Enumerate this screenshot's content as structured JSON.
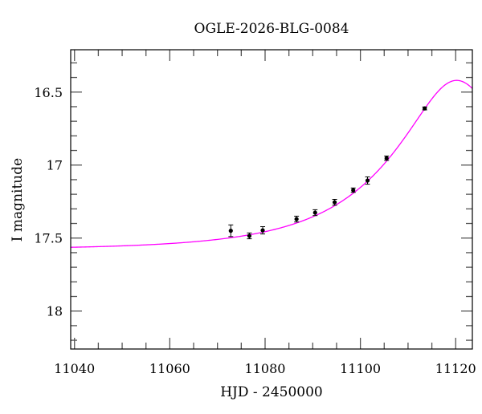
{
  "chart_data": {
    "type": "scatter",
    "title": "OGLE-2026-BLG-0084",
    "xlabel": "HJD - 2450000",
    "ylabel": "I magnitude",
    "xlim": [
      11039.2,
      11123.5
    ],
    "ylim": [
      18.26,
      16.21
    ],
    "y_inverted": true,
    "x_ticks": [
      11040,
      11060,
      11080,
      11100,
      11120
    ],
    "x_tick_labels": [
      "11040",
      "11060",
      "11080",
      "11100",
      "11120"
    ],
    "y_ticks": [
      16.5,
      17,
      17.5,
      18
    ],
    "y_tick_labels": [
      "16.5",
      "17",
      "17.5",
      "18"
    ],
    "grid": false,
    "series": [
      {
        "kind": "points-with-errorbars",
        "color": "#000000",
        "x": [
          11072.8,
          11076.7,
          11079.5,
          11086.6,
          11090.5,
          11094.6,
          11098.5,
          11101.5,
          11105.5,
          11113.5
        ],
        "y": [
          17.45,
          17.485,
          17.447,
          17.37,
          17.326,
          17.255,
          17.172,
          17.106,
          16.953,
          16.612
        ],
        "yerr": [
          0.04,
          0.02,
          0.025,
          0.02,
          0.02,
          0.02,
          0.015,
          0.025,
          0.015,
          0.01
        ]
      },
      {
        "kind": "model-curve",
        "color": "#ff00ff",
        "model": {
          "type": "point-lens",
          "t0": 11120.2,
          "u0": 0.36,
          "tE": 26.5,
          "I_base": 17.58
        }
      }
    ]
  }
}
